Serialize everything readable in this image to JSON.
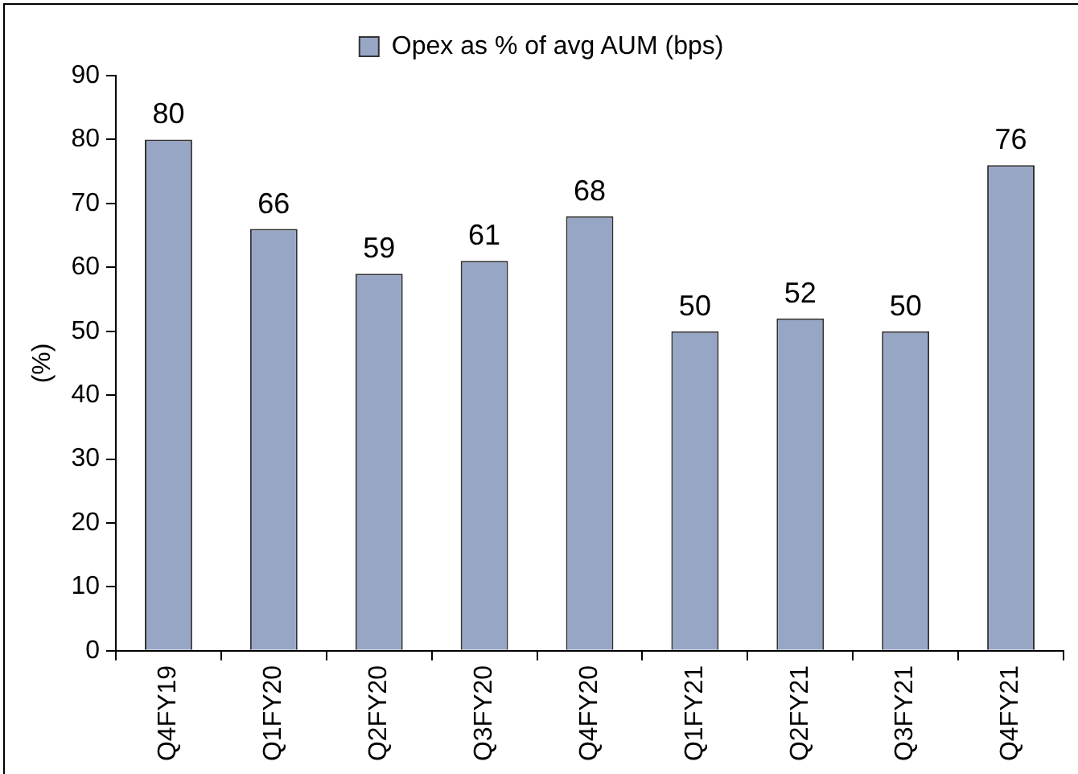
{
  "chart_data": {
    "type": "bar",
    "ylabel": "(%)",
    "categories": [
      "Q4FY19",
      "Q1FY20",
      "Q2FY20",
      "Q3FY20",
      "Q4FY20",
      "Q1FY21",
      "Q2FY21",
      "Q3FY21",
      "Q4FY21"
    ],
    "series": [
      {
        "name": "Opex as % of avg AUM (bps)",
        "color": "#98a6c6",
        "values": [
          80,
          66,
          59,
          61,
          68,
          50,
          52,
          50,
          76
        ]
      }
    ],
    "ylim": [
      0,
      90
    ],
    "yticks": [
      0,
      10,
      20,
      30,
      40,
      50,
      60,
      70,
      80,
      90
    ],
    "grid": false,
    "legend": "top",
    "data_labels": true
  }
}
